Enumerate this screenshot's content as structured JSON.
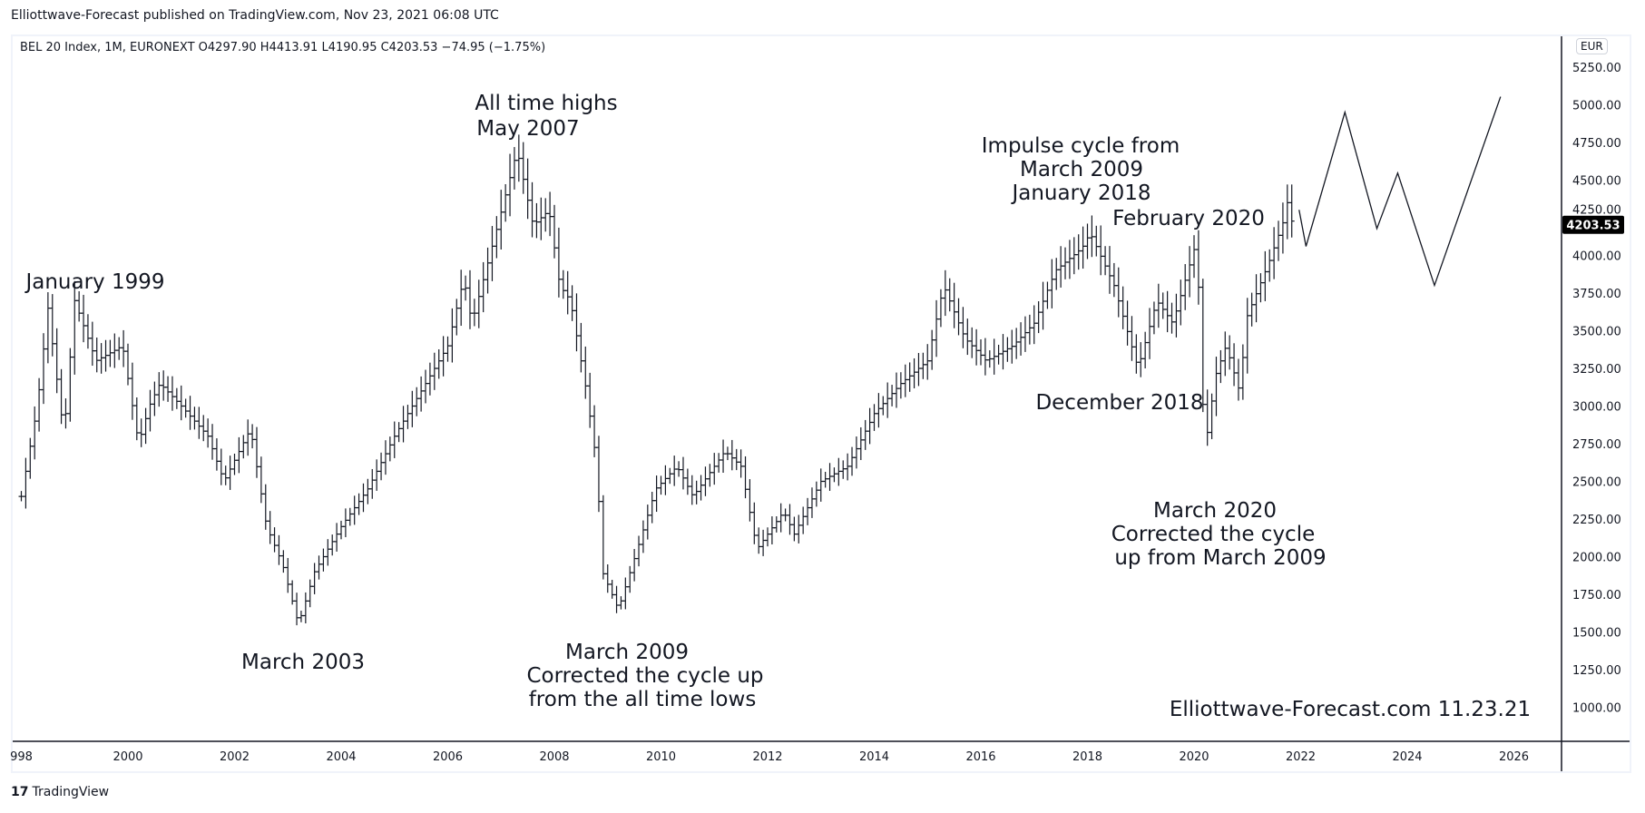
{
  "header": {
    "published": "Elliottwave-Forecast published on TradingView.com, Nov 23, 2021 06:08 UTC"
  },
  "legend": {
    "text": "BEL 20 Index, 1M, EURONEXT  O4297.90  H4413.91  L4190.95  C4203.53  −74.95 (−1.75%)"
  },
  "price_axis": {
    "currency": "EUR",
    "last_price_label": "4203.53",
    "last_price_bg": "#000000"
  },
  "footer": {
    "brand": "TradingView"
  },
  "watermark": "Elliottwave-Forecast.com  11.23.21",
  "annotations": [
    "All time highs",
    "May 2007",
    "January 1999",
    "March 2003",
    "March 2009",
    "Corrected the cycle up",
    "from the all time lows",
    "Impulse cycle from",
    "March 2009",
    "January 2018",
    "February 2020",
    "December 2018",
    "March 2020",
    "Corrected the cycle",
    "up from March 2009"
  ],
  "chart_data": {
    "type": "ohlc-bar",
    "title": "BEL 20 Index, 1M, EURONEXT",
    "ylim": [
      900,
      5350
    ],
    "xlim": [
      1998,
      2027
    ],
    "yticks": [
      "1000.00",
      "1250.00",
      "1500.00",
      "1750.00",
      "2000.00",
      "2250.00",
      "2500.00",
      "2750.00",
      "3000.00",
      "3250.00",
      "3500.00",
      "3750.00",
      "4000.00",
      "4250.00",
      "4500.00",
      "4750.00",
      "5000.00",
      "5250.00"
    ],
    "xticks": [
      "998",
      "2000",
      "2002",
      "2004",
      "2006",
      "2008",
      "2010",
      "2012",
      "2014",
      "2016",
      "2018",
      "2020",
      "2022",
      "2024",
      "2026"
    ],
    "grid": false,
    "last_close": 4203.53,
    "price_keypoints": [
      [
        1998.0,
        2400
      ],
      [
        1998.3,
        3000
      ],
      [
        1998.5,
        3650
      ],
      [
        1998.8,
        2800
      ],
      [
        1999.0,
        3700
      ],
      [
        1999.4,
        3300
      ],
      [
        1999.9,
        3400
      ],
      [
        2000.2,
        2750
      ],
      [
        2000.4,
        3000
      ],
      [
        2000.6,
        3150
      ],
      [
        2001.0,
        3000
      ],
      [
        2001.5,
        2800
      ],
      [
        2001.8,
        2500
      ],
      [
        2002.3,
        2850
      ],
      [
        2002.6,
        2200
      ],
      [
        2002.9,
        1950
      ],
      [
        2003.2,
        1550
      ],
      [
        2003.5,
        1900
      ],
      [
        2004.0,
        2200
      ],
      [
        2004.5,
        2450
      ],
      [
        2005.0,
        2800
      ],
      [
        2005.5,
        3100
      ],
      [
        2006.0,
        3400
      ],
      [
        2006.3,
        3850
      ],
      [
        2006.45,
        3550
      ],
      [
        2006.9,
        4150
      ],
      [
        2007.3,
        4700
      ],
      [
        2007.6,
        4200
      ],
      [
        2007.9,
        4300
      ],
      [
        2008.1,
        3800
      ],
      [
        2008.3,
        3700
      ],
      [
        2008.6,
        3100
      ],
      [
        2008.8,
        2600
      ],
      [
        2008.9,
        1900
      ],
      [
        2009.2,
        1650
      ],
      [
        2009.6,
        2100
      ],
      [
        2009.9,
        2450
      ],
      [
        2010.3,
        2600
      ],
      [
        2010.6,
        2400
      ],
      [
        2011.2,
        2700
      ],
      [
        2011.5,
        2600
      ],
      [
        2011.8,
        2050
      ],
      [
        2012.3,
        2300
      ],
      [
        2012.5,
        2150
      ],
      [
        2013.0,
        2500
      ],
      [
        2013.5,
        2600
      ],
      [
        2014.0,
        2950
      ],
      [
        2014.5,
        3150
      ],
      [
        2015.0,
        3300
      ],
      [
        2015.3,
        3800
      ],
      [
        2015.7,
        3450
      ],
      [
        2016.1,
        3300
      ],
      [
        2016.6,
        3400
      ],
      [
        2017.0,
        3550
      ],
      [
        2017.4,
        3900
      ],
      [
        2017.9,
        4050
      ],
      [
        2018.05,
        4150
      ],
      [
        2018.5,
        3800
      ],
      [
        2018.95,
        3250
      ],
      [
        2019.3,
        3700
      ],
      [
        2019.6,
        3550
      ],
      [
        2020.05,
        4100
      ],
      [
        2020.2,
        2700
      ],
      [
        2020.4,
        3200
      ],
      [
        2020.6,
        3400
      ],
      [
        2020.85,
        3100
      ],
      [
        2021.0,
        3600
      ],
      [
        2021.4,
        3950
      ],
      [
        2021.7,
        4250
      ],
      [
        2021.75,
        4350
      ],
      [
        2021.85,
        4203.53
      ]
    ],
    "projection": [
      [
        2021.97,
        4303
      ],
      [
        2022.1,
        4060
      ],
      [
        2022.83,
        4951
      ],
      [
        2023.43,
        4178
      ],
      [
        2023.82,
        4547
      ],
      [
        2024.51,
        3801
      ],
      [
        2025.75,
        5054
      ]
    ]
  }
}
